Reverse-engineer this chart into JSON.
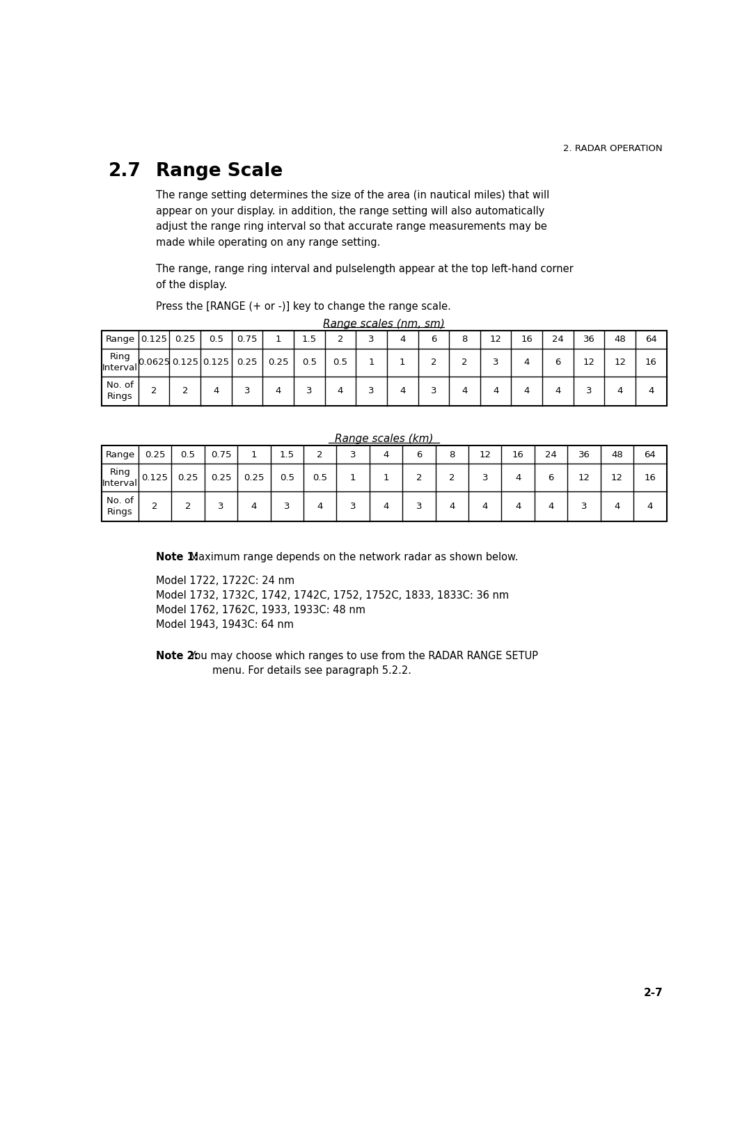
{
  "page_header": "2. RADAR OPERATION",
  "section_number": "2.7",
  "section_title": "Range Scale",
  "paragraph1": "The range setting determines the size of the area (in nautical miles) that will\nappear on your display. in addition, the range setting will also automatically\nadjust the range ring interval so that accurate range measurements may be\nmade while operating on any range setting.",
  "paragraph2": "The range, range ring interval and pulselength appear at the top left-hand corner\nof the display.",
  "paragraph3": "Press the [RANGE (+ or -)] key to change the range scale.",
  "table1_title": "Range scales (nm, sm)",
  "table1_rows": [
    [
      "Range",
      "0.125",
      "0.25",
      "0.5",
      "0.75",
      "1",
      "1.5",
      "2",
      "3",
      "4",
      "6",
      "8",
      "12",
      "16",
      "24",
      "36",
      "48",
      "64"
    ],
    [
      "Ring\nInterval",
      "0.0625",
      "0.125",
      "0.125",
      "0.25",
      "0.25",
      "0.5",
      "0.5",
      "1",
      "1",
      "2",
      "2",
      "3",
      "4",
      "6",
      "12",
      "12",
      "16"
    ],
    [
      "No. of\nRings",
      "2",
      "2",
      "4",
      "3",
      "4",
      "3",
      "4",
      "3",
      "4",
      "3",
      "4",
      "4",
      "4",
      "4",
      "3",
      "4",
      "4"
    ]
  ],
  "table2_title": "Range scales (km)",
  "table2_rows": [
    [
      "Range",
      "0.25",
      "0.5",
      "0.75",
      "1",
      "1.5",
      "2",
      "3",
      "4",
      "6",
      "8",
      "12",
      "16",
      "24",
      "36",
      "48",
      "64"
    ],
    [
      "Ring\nInterval",
      "0.125",
      "0.25",
      "0.25",
      "0.25",
      "0.5",
      "0.5",
      "1",
      "1",
      "2",
      "2",
      "3",
      "4",
      "6",
      "12",
      "12",
      "16"
    ],
    [
      "No. of\nRings",
      "2",
      "2",
      "3",
      "4",
      "3",
      "4",
      "3",
      "4",
      "3",
      "4",
      "4",
      "4",
      "4",
      "3",
      "4",
      "4"
    ]
  ],
  "note1_bold": "Note 1:",
  "note1_text": " Maximum range depends on the network radar as shown below.",
  "model_lines": [
    "Model 1722, 1722C: 24 nm",
    "Model 1732, 1732C, 1742, 1742C, 1752, 1752C, 1833, 1833C: 36 nm",
    "Model 1762, 1762C, 1933, 1933C: 48 nm",
    "Model 1943, 1943C: 64 nm"
  ],
  "note2_bold": "Note 2:",
  "note2_line1": " You may choose which ranges to use from the RADAR RANGE SETUP",
  "note2_line2": "menu. For details see paragraph 5.2.2.",
  "page_number": "2-7",
  "bg_color": "#ffffff",
  "text_color": "#000000"
}
